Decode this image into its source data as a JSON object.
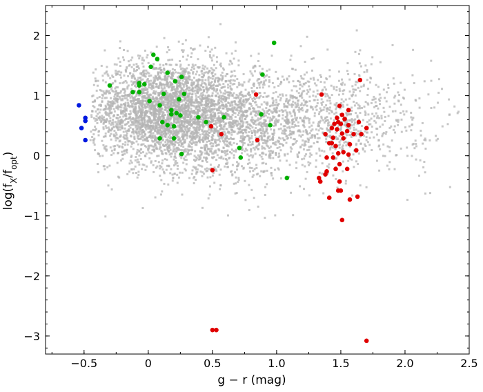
{
  "chart_data": {
    "type": "scatter",
    "xlabel": "g − r (mag)",
    "ylabel": "log(f",
    "ylabel_sub1": "X",
    "ylabel_mid": "/f",
    "ylabel_sub2": "opt",
    "ylabel_end": ")",
    "xlim": [
      -0.8,
      2.5
    ],
    "ylim": [
      -3.3,
      2.5
    ],
    "xticks": [
      {
        "value": -0.5,
        "label": "−0.5"
      },
      {
        "value": 0,
        "label": "0"
      },
      {
        "value": 0.5,
        "label": "0.5"
      },
      {
        "value": 1.0,
        "label": "1.0"
      },
      {
        "value": 1.5,
        "label": "1.5"
      },
      {
        "value": 2.0,
        "label": "2.0"
      },
      {
        "value": 2.5,
        "label": "2.5"
      }
    ],
    "yticks": [
      {
        "value": -3,
        "label": "−3"
      },
      {
        "value": -2,
        "label": "−2"
      },
      {
        "value": -1,
        "label": "−1"
      },
      {
        "value": 0,
        "label": "0"
      },
      {
        "value": 1,
        "label": "1"
      },
      {
        "value": 2,
        "label": "2"
      }
    ],
    "background_population": {
      "color": "#b4b4b4",
      "description_clusters": [
        {
          "cx": 0.1,
          "cy": 0.75,
          "sx": 0.28,
          "sy": 0.42,
          "n": 2600
        },
        {
          "cx": 0.55,
          "cy": 0.55,
          "sx": 0.35,
          "sy": 0.45,
          "n": 1500
        },
        {
          "cx": 1.3,
          "cy": 0.6,
          "sx": 0.45,
          "sy": 0.45,
          "n": 1100
        }
      ]
    },
    "series": [
      {
        "color": "#0018e0",
        "points": [
          [
            -0.54,
            0.84
          ],
          [
            -0.49,
            0.63
          ],
          [
            -0.49,
            0.58
          ],
          [
            -0.52,
            0.46
          ],
          [
            -0.49,
            0.26
          ]
        ]
      },
      {
        "color": "#00b000",
        "points": [
          [
            -0.3,
            1.17
          ],
          [
            0.04,
            1.68
          ],
          [
            0.07,
            1.61
          ],
          [
            0.02,
            1.48
          ],
          [
            0.15,
            1.38
          ],
          [
            0.26,
            1.31
          ],
          [
            0.21,
            1.24
          ],
          [
            -0.07,
            1.21
          ],
          [
            -0.07,
            1.17
          ],
          [
            -0.03,
            1.19
          ],
          [
            -0.12,
            1.06
          ],
          [
            -0.07,
            1.06
          ],
          [
            0.28,
            1.03
          ],
          [
            0.12,
            1.03
          ],
          [
            0.24,
            0.94
          ],
          [
            0.01,
            0.91
          ],
          [
            0.09,
            0.84
          ],
          [
            0.18,
            0.76
          ],
          [
            0.22,
            0.71
          ],
          [
            0.18,
            0.69
          ],
          [
            0.25,
            0.67
          ],
          [
            0.39,
            0.64
          ],
          [
            0.59,
            0.64
          ],
          [
            0.45,
            0.56
          ],
          [
            0.11,
            0.56
          ],
          [
            0.15,
            0.51
          ],
          [
            0.2,
            0.49
          ],
          [
            0.09,
            0.29
          ],
          [
            0.2,
            0.29
          ],
          [
            0.26,
            0.03
          ],
          [
            0.71,
            0.13
          ],
          [
            0.72,
            -0.03
          ],
          [
            0.88,
            0.69
          ],
          [
            0.89,
            1.35
          ],
          [
            0.98,
            1.88
          ],
          [
            0.95,
            0.51
          ],
          [
            1.08,
            -0.37
          ]
        ]
      },
      {
        "color": "#e00000",
        "points": [
          [
            0.84,
            1.02
          ],
          [
            0.85,
            0.26
          ],
          [
            0.57,
            0.36
          ],
          [
            0.49,
            0.49
          ],
          [
            0.5,
            -0.24
          ],
          [
            0.5,
            -2.9
          ],
          [
            0.53,
            -2.9
          ],
          [
            1.35,
            1.02
          ],
          [
            1.65,
            1.26
          ],
          [
            1.49,
            0.83
          ],
          [
            1.56,
            0.76
          ],
          [
            1.47,
            0.63
          ],
          [
            1.51,
            0.68
          ],
          [
            1.53,
            0.61
          ],
          [
            1.48,
            0.56
          ],
          [
            1.5,
            0.53
          ],
          [
            1.45,
            0.53
          ],
          [
            1.56,
            0.51
          ],
          [
            1.43,
            0.46
          ],
          [
            1.47,
            0.44
          ],
          [
            1.55,
            0.41
          ],
          [
            1.51,
            0.37
          ],
          [
            1.6,
            0.36
          ],
          [
            1.44,
            0.3
          ],
          [
            1.52,
            0.29
          ],
          [
            1.38,
            0.36
          ],
          [
            1.66,
            0.36
          ],
          [
            1.7,
            0.46
          ],
          [
            1.64,
            0.56
          ],
          [
            1.46,
            0.16
          ],
          [
            1.57,
            0.19
          ],
          [
            1.62,
            0.09
          ],
          [
            1.48,
            0.04
          ],
          [
            1.52,
            0.06
          ],
          [
            1.56,
            0.02
          ],
          [
            1.43,
            0.21
          ],
          [
            1.41,
            0.21
          ],
          [
            1.39,
            -0.03
          ],
          [
            1.44,
            -0.03
          ],
          [
            1.49,
            -0.14
          ],
          [
            1.46,
            -0.22
          ],
          [
            1.55,
            -0.22
          ],
          [
            1.39,
            -0.26
          ],
          [
            1.38,
            -0.31
          ],
          [
            1.33,
            -0.37
          ],
          [
            1.34,
            -0.43
          ],
          [
            1.49,
            -0.43
          ],
          [
            1.48,
            -0.58
          ],
          [
            1.5,
            -0.58
          ],
          [
            1.41,
            -0.7
          ],
          [
            1.63,
            -0.68
          ],
          [
            1.57,
            -0.73
          ],
          [
            1.51,
            -1.07
          ],
          [
            1.7,
            -3.08
          ]
        ]
      }
    ]
  }
}
